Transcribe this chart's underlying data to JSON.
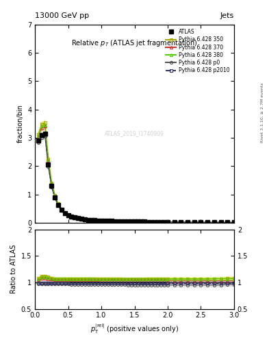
{
  "title_main": "13000 GeV pp",
  "title_right": "Jets",
  "plot_title": "Relative $p_T$ (ATLAS jet fragmentation)",
  "ylabel_main": "fraction/bin",
  "ylabel_ratio": "Ratio to ATLAS",
  "right_label": "Rivet 3.1.10, ≥ 2.7M events",
  "watermark": "ATLAS_2019_I1740909",
  "xlim": [
    0,
    3
  ],
  "ylim_main": [
    0,
    7
  ],
  "ylim_ratio": [
    0.5,
    2.0
  ],
  "x_data": [
    0.05,
    0.1,
    0.15,
    0.2,
    0.25,
    0.3,
    0.35,
    0.4,
    0.45,
    0.5,
    0.55,
    0.6,
    0.65,
    0.7,
    0.75,
    0.8,
    0.85,
    0.9,
    0.95,
    1.0,
    1.05,
    1.1,
    1.15,
    1.2,
    1.25,
    1.3,
    1.35,
    1.4,
    1.45,
    1.5,
    1.55,
    1.6,
    1.65,
    1.7,
    1.75,
    1.8,
    1.85,
    1.9,
    1.95,
    2.0,
    2.1,
    2.2,
    2.3,
    2.4,
    2.5,
    2.6,
    2.7,
    2.8,
    2.9,
    3.0
  ],
  "atlas_y": [
    2.9,
    3.1,
    3.15,
    2.05,
    1.3,
    0.9,
    0.62,
    0.45,
    0.34,
    0.26,
    0.21,
    0.18,
    0.155,
    0.135,
    0.12,
    0.105,
    0.095,
    0.085,
    0.078,
    0.072,
    0.067,
    0.063,
    0.059,
    0.056,
    0.053,
    0.05,
    0.047,
    0.044,
    0.042,
    0.04,
    0.038,
    0.036,
    0.034,
    0.032,
    0.031,
    0.029,
    0.028,
    0.027,
    0.026,
    0.025,
    0.023,
    0.021,
    0.019,
    0.017,
    0.015,
    0.014,
    0.013,
    0.012,
    0.011,
    0.01
  ],
  "atlas_yerr": [
    0.05,
    0.05,
    0.05,
    0.04,
    0.03,
    0.02,
    0.015,
    0.01,
    0.008,
    0.006,
    0.005,
    0.004,
    0.003,
    0.003,
    0.003,
    0.002,
    0.002,
    0.002,
    0.002,
    0.002,
    0.001,
    0.001,
    0.001,
    0.001,
    0.001,
    0.001,
    0.001,
    0.001,
    0.001,
    0.001,
    0.001,
    0.001,
    0.001,
    0.001,
    0.001,
    0.001,
    0.001,
    0.001,
    0.001,
    0.001,
    0.001,
    0.001,
    0.001,
    0.001,
    0.001,
    0.001,
    0.001,
    0.001,
    0.001,
    0.001
  ],
  "series": [
    {
      "label": "Pythia 6.428 350",
      "color": "#aaaa00",
      "marker": "s",
      "linestyle": "-",
      "fillstyle": "none",
      "band_color": "#dddd00",
      "band_alpha": 0.35,
      "ratio": [
        1.08,
        1.12,
        1.12,
        1.1,
        1.08,
        1.07,
        1.07,
        1.07,
        1.07,
        1.07,
        1.07,
        1.07,
        1.07,
        1.07,
        1.07,
        1.07,
        1.07,
        1.07,
        1.07,
        1.07,
        1.07,
        1.07,
        1.07,
        1.07,
        1.07,
        1.07,
        1.06,
        1.06,
        1.06,
        1.06,
        1.06,
        1.06,
        1.06,
        1.07,
        1.07,
        1.07,
        1.07,
        1.07,
        1.07,
        1.07,
        1.07,
        1.07,
        1.07,
        1.07,
        1.07,
        1.07,
        1.07,
        1.07,
        1.08,
        1.08
      ]
    },
    {
      "label": "Pythia 6.428 370",
      "color": "#cc3333",
      "marker": "^",
      "linestyle": "-",
      "fillstyle": "none",
      "band_color": "#ff6666",
      "band_alpha": 0.2,
      "ratio": [
        1.05,
        1.08,
        1.08,
        1.07,
        1.06,
        1.05,
        1.05,
        1.05,
        1.05,
        1.05,
        1.05,
        1.05,
        1.05,
        1.05,
        1.05,
        1.05,
        1.05,
        1.05,
        1.05,
        1.04,
        1.04,
        1.04,
        1.04,
        1.04,
        1.04,
        1.04,
        1.04,
        1.04,
        1.04,
        1.04,
        1.04,
        1.04,
        1.04,
        1.04,
        1.04,
        1.04,
        1.04,
        1.04,
        1.04,
        1.03,
        1.03,
        1.03,
        1.03,
        1.03,
        1.03,
        1.03,
        1.03,
        1.03,
        1.03,
        1.03
      ]
    },
    {
      "label": "Pythia 6.428 380",
      "color": "#55cc00",
      "marker": "^",
      "linestyle": "-",
      "fillstyle": "none",
      "band_color": "#88ff44",
      "band_alpha": 0.35,
      "ratio": [
        1.06,
        1.1,
        1.1,
        1.09,
        1.08,
        1.07,
        1.07,
        1.07,
        1.07,
        1.07,
        1.07,
        1.07,
        1.07,
        1.07,
        1.07,
        1.07,
        1.07,
        1.07,
        1.06,
        1.06,
        1.06,
        1.06,
        1.06,
        1.06,
        1.06,
        1.06,
        1.06,
        1.06,
        1.06,
        1.06,
        1.06,
        1.06,
        1.06,
        1.06,
        1.06,
        1.06,
        1.06,
        1.06,
        1.06,
        1.06,
        1.06,
        1.06,
        1.06,
        1.06,
        1.06,
        1.06,
        1.07,
        1.07,
        1.07,
        1.07
      ]
    },
    {
      "label": "Pythia 6.428 p0",
      "color": "#555555",
      "marker": "o",
      "linestyle": "-",
      "fillstyle": "none",
      "band_color": "#aaaaaa",
      "band_alpha": 0.25,
      "ratio": [
        0.98,
        0.97,
        0.97,
        0.97,
        0.97,
        0.97,
        0.97,
        0.97,
        0.97,
        0.97,
        0.96,
        0.96,
        0.96,
        0.96,
        0.96,
        0.96,
        0.96,
        0.96,
        0.96,
        0.96,
        0.96,
        0.96,
        0.96,
        0.96,
        0.96,
        0.96,
        0.96,
        0.95,
        0.95,
        0.95,
        0.95,
        0.95,
        0.95,
        0.95,
        0.95,
        0.95,
        0.95,
        0.95,
        0.95,
        0.95,
        0.95,
        0.95,
        0.95,
        0.95,
        0.95,
        0.95,
        0.95,
        0.95,
        0.96,
        0.96
      ]
    },
    {
      "label": "Pythia 6.428 p2010",
      "color": "#333366",
      "marker": "s",
      "linestyle": "--",
      "fillstyle": "none",
      "band_color": "#6666aa",
      "band_alpha": 0.2,
      "ratio": [
        0.99,
        0.99,
        0.99,
        0.99,
        0.99,
        0.99,
        0.99,
        0.99,
        0.99,
        0.99,
        0.99,
        0.99,
        0.99,
        0.99,
        0.99,
        0.99,
        0.99,
        0.99,
        0.99,
        0.99,
        0.99,
        0.99,
        0.99,
        0.99,
        0.99,
        0.99,
        0.99,
        0.99,
        0.99,
        0.99,
        0.99,
        0.99,
        0.99,
        0.99,
        0.99,
        0.99,
        0.99,
        0.99,
        0.99,
        0.99,
        0.99,
        0.99,
        0.99,
        0.99,
        0.99,
        0.99,
        0.99,
        0.99,
        0.99,
        0.99
      ]
    }
  ]
}
